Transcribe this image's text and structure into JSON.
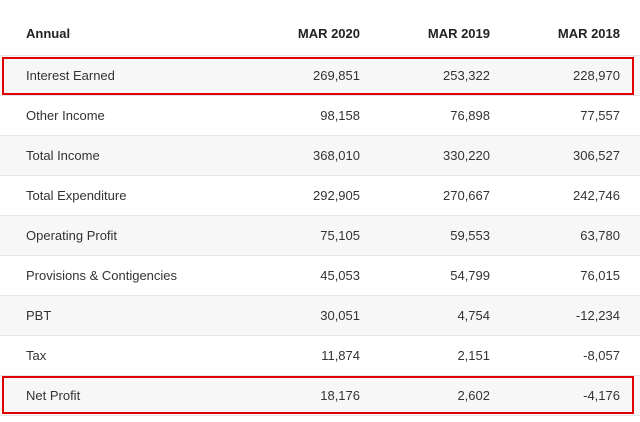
{
  "table": {
    "columns": [
      "Annual",
      "MAR 2020",
      "MAR 2019",
      "MAR 2018"
    ],
    "rows": [
      {
        "label": "Interest Earned",
        "values": [
          "269,851",
          "253,322",
          "228,970"
        ]
      },
      {
        "label": "Other Income",
        "values": [
          "98,158",
          "76,898",
          "77,557"
        ]
      },
      {
        "label": "Total Income",
        "values": [
          "368,010",
          "330,220",
          "306,527"
        ]
      },
      {
        "label": "Total Expenditure",
        "values": [
          "292,905",
          "270,667",
          "242,746"
        ]
      },
      {
        "label": "Operating Profit",
        "values": [
          "75,105",
          "59,553",
          "63,780"
        ]
      },
      {
        "label": "Provisions & Contigencies",
        "values": [
          "45,053",
          "54,799",
          "76,015"
        ]
      },
      {
        "label": "PBT",
        "values": [
          "30,051",
          "4,754",
          "-12,234"
        ]
      },
      {
        "label": "Tax",
        "values": [
          "11,874",
          "2,151",
          "-8,057"
        ]
      },
      {
        "label": "Net Profit",
        "values": [
          "18,176",
          "2,602",
          "-4,176"
        ]
      }
    ]
  },
  "highlight_color": "#e00000"
}
